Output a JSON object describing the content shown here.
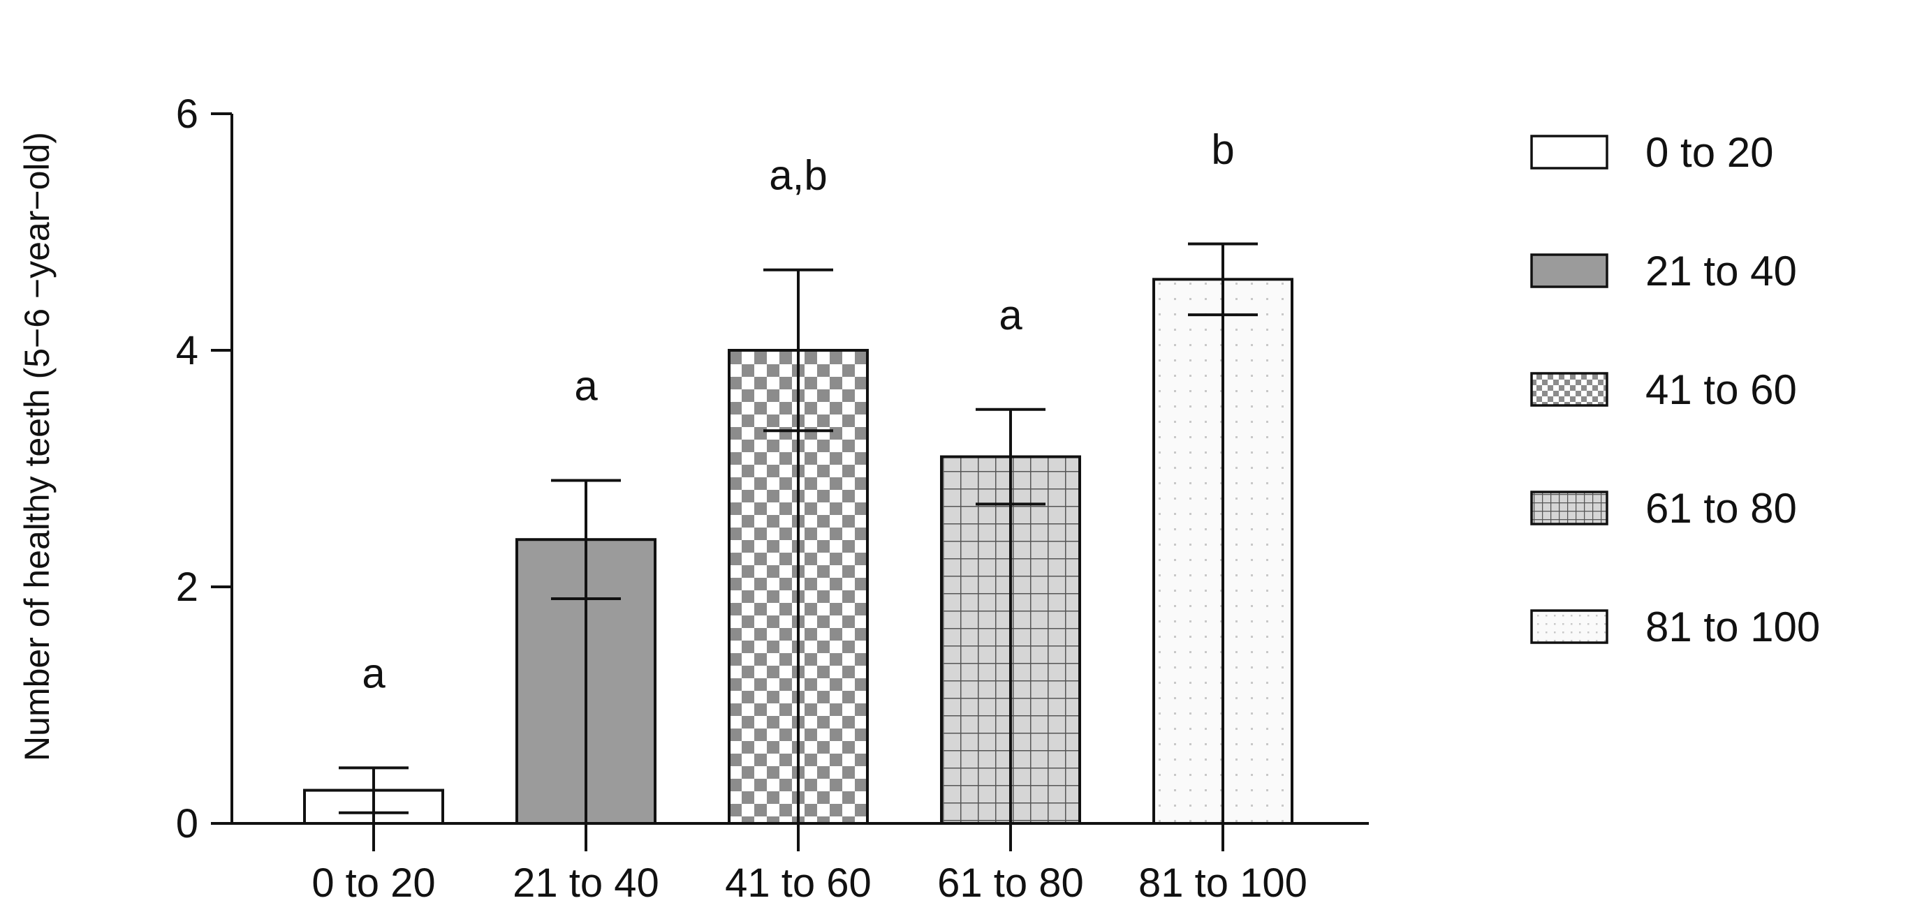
{
  "chart_data": {
    "type": "bar",
    "title": "",
    "xlabel": "",
    "ylabel": "Number of healthy teeth (5−6 −year−old)",
    "ylim": [
      0,
      6
    ],
    "yticks": [
      "0",
      "2",
      "4",
      "6"
    ],
    "grid": false,
    "legend_position": "right",
    "categories": [
      "0 to 20",
      "21 to 40",
      "41 to 60",
      "61 to 80",
      "81 to 100"
    ],
    "values": [
      0.28,
      2.4,
      4.0,
      3.1,
      4.6
    ],
    "errors": [
      0.19,
      0.5,
      0.68,
      0.4,
      0.3
    ],
    "significance_letters": [
      "a",
      "a",
      "a,b",
      "a",
      "b"
    ],
    "bar_styles": [
      {
        "pattern": "none",
        "fill": "#ffffff"
      },
      {
        "pattern": "solid",
        "fill": "#9b9b9b"
      },
      {
        "pattern": "checker",
        "fill": "#ffffff",
        "ink": "#8c8c8c"
      },
      {
        "pattern": "grid",
        "fill": "#d6d6d6",
        "ink": "#555555"
      },
      {
        "pattern": "dots",
        "fill": "#fafafa",
        "ink": "#c8c8c8"
      }
    ],
    "legend": [
      "0 to 20",
      "21 to 40",
      "41 to 60",
      "61 to 80",
      "81 to 100"
    ]
  }
}
